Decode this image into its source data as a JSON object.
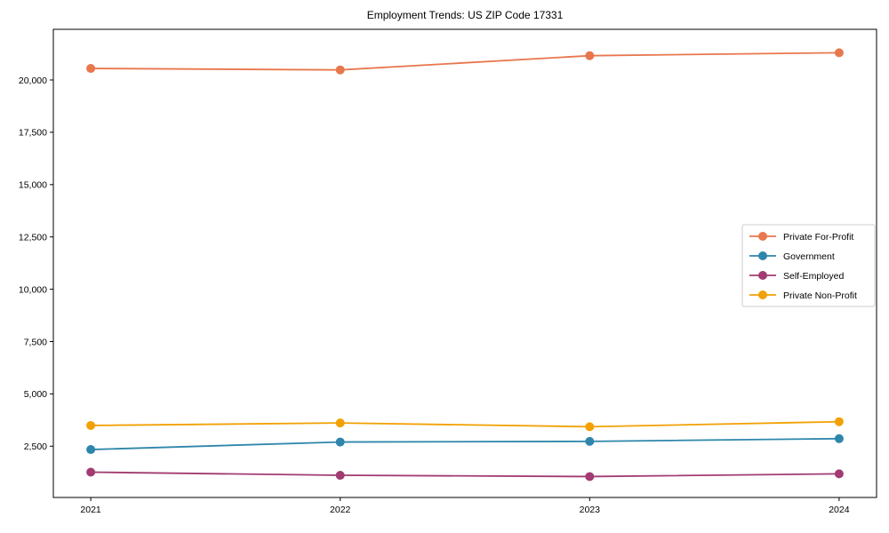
{
  "window": {
    "background_color": "#ffffff"
  },
  "chart_data": {
    "type": "line",
    "title": "Employment Trends: US ZIP Code 17331",
    "xlabel": "",
    "ylabel": "",
    "x": [
      2021,
      2022,
      2023,
      2024
    ],
    "x_tick_labels": [
      "2021",
      "2022",
      "2023",
      "2024"
    ],
    "y_ticks": [
      2500,
      5000,
      7500,
      10000,
      12500,
      15000,
      17500,
      20000
    ],
    "y_tick_labels": [
      "2,500",
      "5,000",
      "7,500",
      "10,000",
      "12,500",
      "15,000",
      "17,500",
      "20,000"
    ],
    "xlim": [
      2020.85,
      2024.15
    ],
    "ylim": [
      50,
      22420
    ],
    "grid": false,
    "legend_position": "center-right",
    "series": [
      {
        "name": "Private For-Profit",
        "color": "#E8774D",
        "values": [
          20550,
          20480,
          21160,
          21300
        ]
      },
      {
        "name": "Government",
        "color": "#2E86AB",
        "values": [
          2340,
          2700,
          2730,
          2860
        ]
      },
      {
        "name": "Self-Employed",
        "color": "#A23B72",
        "values": [
          1260,
          1110,
          1050,
          1180
        ]
      },
      {
        "name": "Private Non-Profit",
        "color": "#F2A104",
        "values": [
          3490,
          3610,
          3430,
          3670
        ]
      }
    ],
    "axis": {
      "spine_color": "#000000",
      "tick_color": "#000000",
      "tick_label_color": "#000000",
      "legend_border_color": "#cccccc",
      "legend_background": "#ffffff"
    }
  }
}
